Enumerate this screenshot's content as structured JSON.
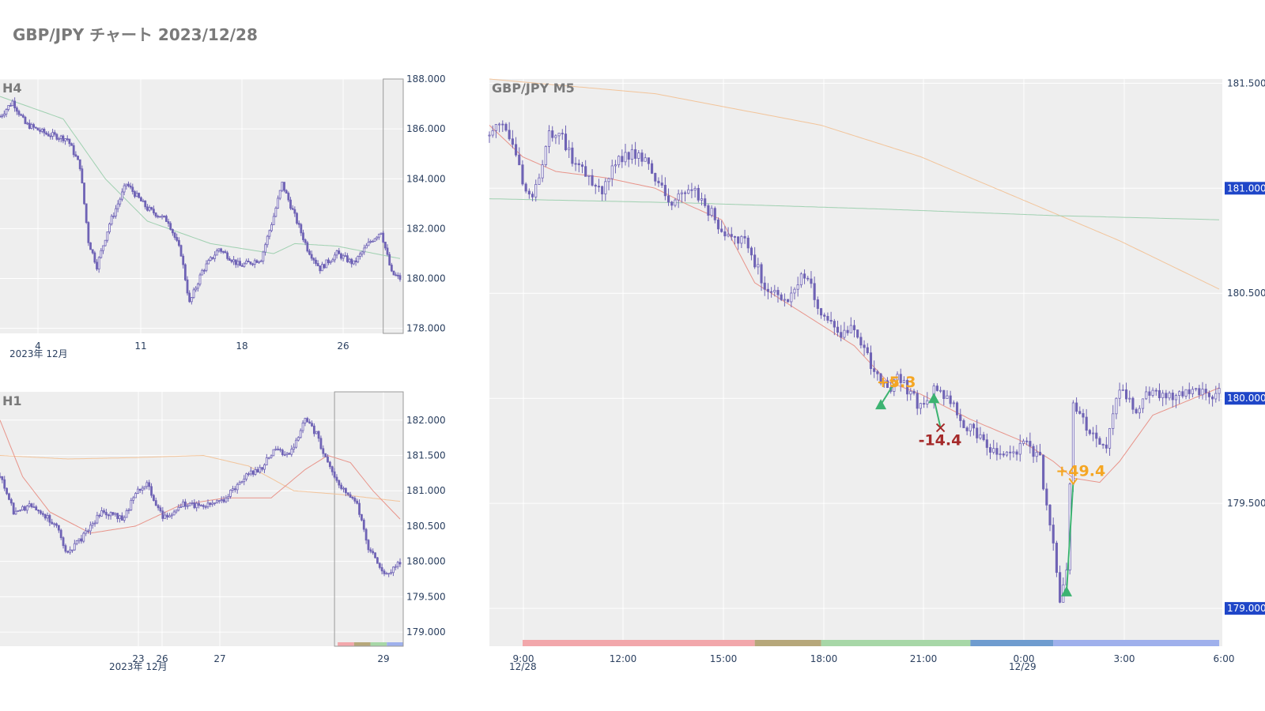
{
  "title": "GBP/JPY チャート 2023/12/28",
  "colors": {
    "plot_bg": "#eeeeee",
    "grid": "#ffffff",
    "candle": "#6f63b5",
    "ma_fast": "#e8948a",
    "ma_mid": "#9fd0b0",
    "ma_slow": "#f2c49a",
    "badge": "#1f46c8",
    "win": "#f5a623",
    "loss": "#a52a2a",
    "entry": "#3cb371",
    "sessions": [
      "#f2a7ab",
      "#b6a77a",
      "#a7d7a7",
      "#6f9ccf",
      "#9fb0ec"
    ]
  },
  "chart_data": [
    {
      "id": "h4",
      "type": "candlestick",
      "title": "H4",
      "x_ticks": [
        "4",
        "11",
        "18",
        "26"
      ],
      "x_sublabel": "2023年 12月",
      "y_ticks": [
        "178.000",
        "180.000",
        "182.000",
        "184.000",
        "186.000",
        "188.000"
      ],
      "ylim": [
        177.8,
        188.0
      ],
      "close_path": [
        [
          0,
          186.5
        ],
        [
          6,
          187.1
        ],
        [
          12,
          186.2
        ],
        [
          22,
          185.8
        ],
        [
          32,
          185.6
        ],
        [
          38,
          184.5
        ],
        [
          42,
          181.5
        ],
        [
          46,
          180.5
        ],
        [
          52,
          182.2
        ],
        [
          60,
          183.8
        ],
        [
          70,
          182.8
        ],
        [
          80,
          182.3
        ],
        [
          86,
          181.0
        ],
        [
          90,
          179.0
        ],
        [
          96,
          180.3
        ],
        [
          104,
          181.2
        ],
        [
          114,
          180.5
        ],
        [
          124,
          180.8
        ],
        [
          130,
          182.5
        ],
        [
          134,
          183.8
        ],
        [
          140,
          182.5
        ],
        [
          146,
          181.2
        ],
        [
          152,
          180.4
        ],
        [
          160,
          181.0
        ],
        [
          168,
          180.6
        ],
        [
          176,
          181.5
        ],
        [
          181,
          181.9
        ],
        [
          186,
          180.2
        ],
        [
          190,
          180.0
        ]
      ],
      "ma": [
        [
          0,
          187.3
        ],
        [
          30,
          186.4
        ],
        [
          50,
          184.0
        ],
        [
          70,
          182.3
        ],
        [
          100,
          181.4
        ],
        [
          130,
          181.0
        ],
        [
          140,
          181.4
        ],
        [
          160,
          181.3
        ],
        [
          190,
          180.8
        ]
      ],
      "highlight_from": 182
    },
    {
      "id": "h1",
      "type": "candlestick",
      "title": "H1",
      "x_ticks": [
        "23",
        "26",
        "27",
        "29"
      ],
      "x_sublabel": "2023年 12月",
      "y_ticks": [
        "179.000",
        "179.500",
        "180.000",
        "180.500",
        "181.000",
        "181.500",
        "182.000"
      ],
      "ylim": [
        178.8,
        182.4
      ],
      "close_path": [
        [
          0,
          181.2
        ],
        [
          6,
          180.7
        ],
        [
          15,
          180.8
        ],
        [
          25,
          180.5
        ],
        [
          30,
          180.1
        ],
        [
          38,
          180.4
        ],
        [
          45,
          180.7
        ],
        [
          55,
          180.6
        ],
        [
          60,
          181.0
        ],
        [
          65,
          181.1
        ],
        [
          72,
          180.6
        ],
        [
          80,
          180.8
        ],
        [
          92,
          180.8
        ],
        [
          100,
          180.9
        ],
        [
          108,
          181.2
        ],
        [
          115,
          181.3
        ],
        [
          122,
          181.6
        ],
        [
          128,
          181.5
        ],
        [
          135,
          182.0
        ],
        [
          140,
          181.8
        ],
        [
          146,
          181.3
        ],
        [
          152,
          181.0
        ],
        [
          158,
          180.8
        ],
        [
          163,
          180.2
        ],
        [
          168,
          179.9
        ],
        [
          172,
          179.8
        ],
        [
          177,
          180.0
        ]
      ],
      "ma_fast": [
        [
          0,
          182.0
        ],
        [
          10,
          181.2
        ],
        [
          22,
          180.7
        ],
        [
          40,
          180.4
        ],
        [
          60,
          180.5
        ],
        [
          80,
          180.8
        ],
        [
          100,
          180.9
        ],
        [
          120,
          180.9
        ],
        [
          135,
          181.3
        ],
        [
          145,
          181.5
        ],
        [
          155,
          181.4
        ],
        [
          165,
          181.0
        ],
        [
          177,
          180.6
        ]
      ],
      "ma_slow": [
        [
          0,
          181.5
        ],
        [
          30,
          181.45
        ],
        [
          60,
          181.47
        ],
        [
          90,
          181.5
        ],
        [
          110,
          181.35
        ],
        [
          130,
          181.0
        ],
        [
          150,
          180.95
        ],
        [
          177,
          180.85
        ]
      ],
      "highlight_from": 148
    },
    {
      "id": "m5",
      "type": "candlestick",
      "title": "GBP/JPY M5",
      "x_ticks": [
        "9:00",
        "12:00",
        "15:00",
        "18:00",
        "21:00",
        "0:00",
        "3:00",
        "6:00"
      ],
      "x_sublabels": [
        "12/28",
        "12/29"
      ],
      "y_ticks": [
        "179.000",
        "179.500",
        "180.000",
        "180.500",
        "181.000",
        "181.500"
      ],
      "ylim": [
        178.82,
        181.52
      ],
      "price_badges": [
        "181.000",
        "180.000",
        "179.000"
      ],
      "close_path": [
        [
          0,
          181.25
        ],
        [
          4,
          181.3
        ],
        [
          9,
          181.1
        ],
        [
          12,
          180.95
        ],
        [
          15,
          181.05
        ],
        [
          18,
          181.25
        ],
        [
          21,
          181.28
        ],
        [
          26,
          181.1
        ],
        [
          30,
          181.05
        ],
        [
          34,
          181.0
        ],
        [
          40,
          181.15
        ],
        [
          45,
          181.18
        ],
        [
          50,
          181.05
        ],
        [
          53,
          180.95
        ],
        [
          57,
          180.95
        ],
        [
          62,
          181.0
        ],
        [
          68,
          180.85
        ],
        [
          71,
          180.8
        ],
        [
          77,
          180.75
        ],
        [
          84,
          180.5
        ],
        [
          90,
          180.45
        ],
        [
          95,
          180.6
        ],
        [
          99,
          180.45
        ],
        [
          105,
          180.3
        ],
        [
          110,
          180.35
        ],
        [
          115,
          180.15
        ],
        [
          120,
          180.05
        ],
        [
          124,
          180.1
        ],
        [
          130,
          179.95
        ],
        [
          135,
          180.05
        ],
        [
          140,
          179.95
        ],
        [
          145,
          179.85
        ],
        [
          152,
          179.75
        ],
        [
          158,
          179.75
        ],
        [
          162,
          179.8
        ],
        [
          166,
          179.7
        ],
        [
          170,
          179.3
        ],
        [
          172,
          179.05
        ],
        [
          174,
          179.2
        ],
        [
          176,
          180.0
        ],
        [
          181,
          179.85
        ],
        [
          186,
          179.75
        ],
        [
          190,
          180.05
        ],
        [
          195,
          179.95
        ],
        [
          200,
          180.05
        ],
        [
          206,
          180.0
        ],
        [
          212,
          180.05
        ],
        [
          216,
          180.0
        ],
        [
          220,
          180.02
        ]
      ],
      "ma_fast": [
        [
          0,
          181.3
        ],
        [
          10,
          181.15
        ],
        [
          20,
          181.08
        ],
        [
          35,
          181.05
        ],
        [
          50,
          181.0
        ],
        [
          60,
          180.92
        ],
        [
          70,
          180.85
        ],
        [
          80,
          180.55
        ],
        [
          95,
          180.4
        ],
        [
          110,
          180.25
        ],
        [
          120,
          180.08
        ],
        [
          130,
          180.02
        ],
        [
          145,
          179.9
        ],
        [
          160,
          179.8
        ],
        [
          170,
          179.7
        ],
        [
          176,
          179.62
        ],
        [
          184,
          179.6
        ],
        [
          190,
          179.7
        ],
        [
          200,
          179.92
        ],
        [
          220,
          180.05
        ]
      ],
      "ma_mid": [
        [
          0,
          180.95
        ],
        [
          60,
          180.93
        ],
        [
          120,
          180.9
        ],
        [
          170,
          180.87
        ],
        [
          220,
          180.85
        ]
      ],
      "ma_slow": [
        [
          0,
          181.52
        ],
        [
          50,
          181.45
        ],
        [
          100,
          181.3
        ],
        [
          130,
          181.15
        ],
        [
          160,
          180.95
        ],
        [
          190,
          180.75
        ],
        [
          220,
          180.52
        ]
      ],
      "sessions": [
        [
          0,
          70
        ],
        [
          70,
          90
        ],
        [
          90,
          135
        ],
        [
          135,
          160
        ],
        [
          160,
          210
        ]
      ],
      "trades": [
        {
          "entry_x": 118,
          "entry_y": 179.97,
          "exit_x": 122,
          "exit_y": 180.07,
          "dir": "long",
          "result": "+5.3"
        },
        {
          "entry_x": 134,
          "entry_y": 180.0,
          "exit_x": 136,
          "exit_y": 179.86,
          "dir": "long",
          "result": "-14.4"
        },
        {
          "entry_x": 174,
          "entry_y": 179.08,
          "exit_x": 176,
          "exit_y": 179.6,
          "dir": "long",
          "result": "+49.4"
        }
      ]
    }
  ]
}
